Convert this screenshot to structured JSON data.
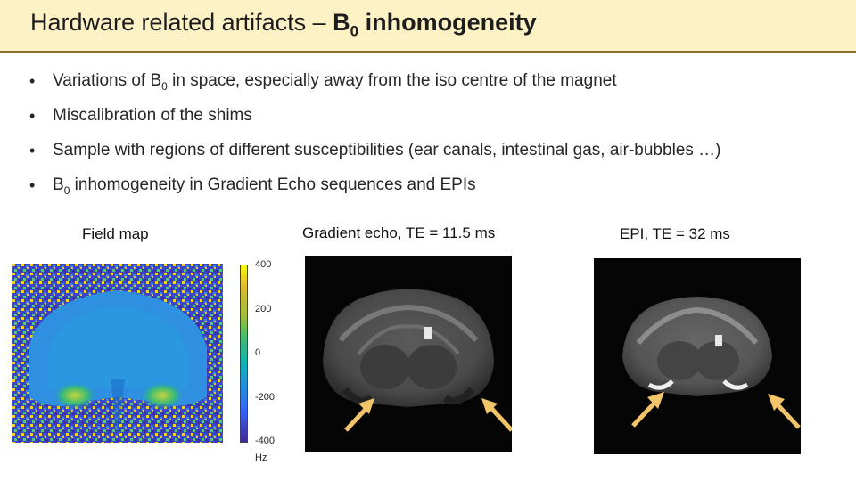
{
  "title": {
    "prefix": "Hardware related artifacts – ",
    "bold_main": "B",
    "bold_sub": "0",
    "bold_suffix": " inhomogeneity"
  },
  "bullets": [
    {
      "pre": "Variations of B",
      "sub": "0",
      "post": " in space, especially away from the iso centre of the magnet"
    },
    {
      "pre": "Miscalibration of the shims",
      "sub": "",
      "post": ""
    },
    {
      "pre": "Sample with regions of different susceptibilities (ear canals, intestinal gas, air-bubbles …)",
      "sub": "",
      "post": ""
    },
    {
      "pre": "B",
      "sub": "0",
      "post": " inhomogeneity in Gradient Echo sequences and EPIs"
    }
  ],
  "figures": {
    "field_map": {
      "caption": "Field map"
    },
    "gradient_echo": {
      "caption": "Gradient echo, TE = 11.5 ms"
    },
    "epi": {
      "caption": "EPI, TE = 32 ms"
    }
  },
  "colorbar": {
    "ticks": [
      "400",
      "200",
      "0",
      "-200",
      "-400"
    ],
    "unit": "Hz"
  },
  "colors": {
    "title_band": "#fdf1c6",
    "title_rule": "#8a7426",
    "arrow": "#f3c56a"
  }
}
